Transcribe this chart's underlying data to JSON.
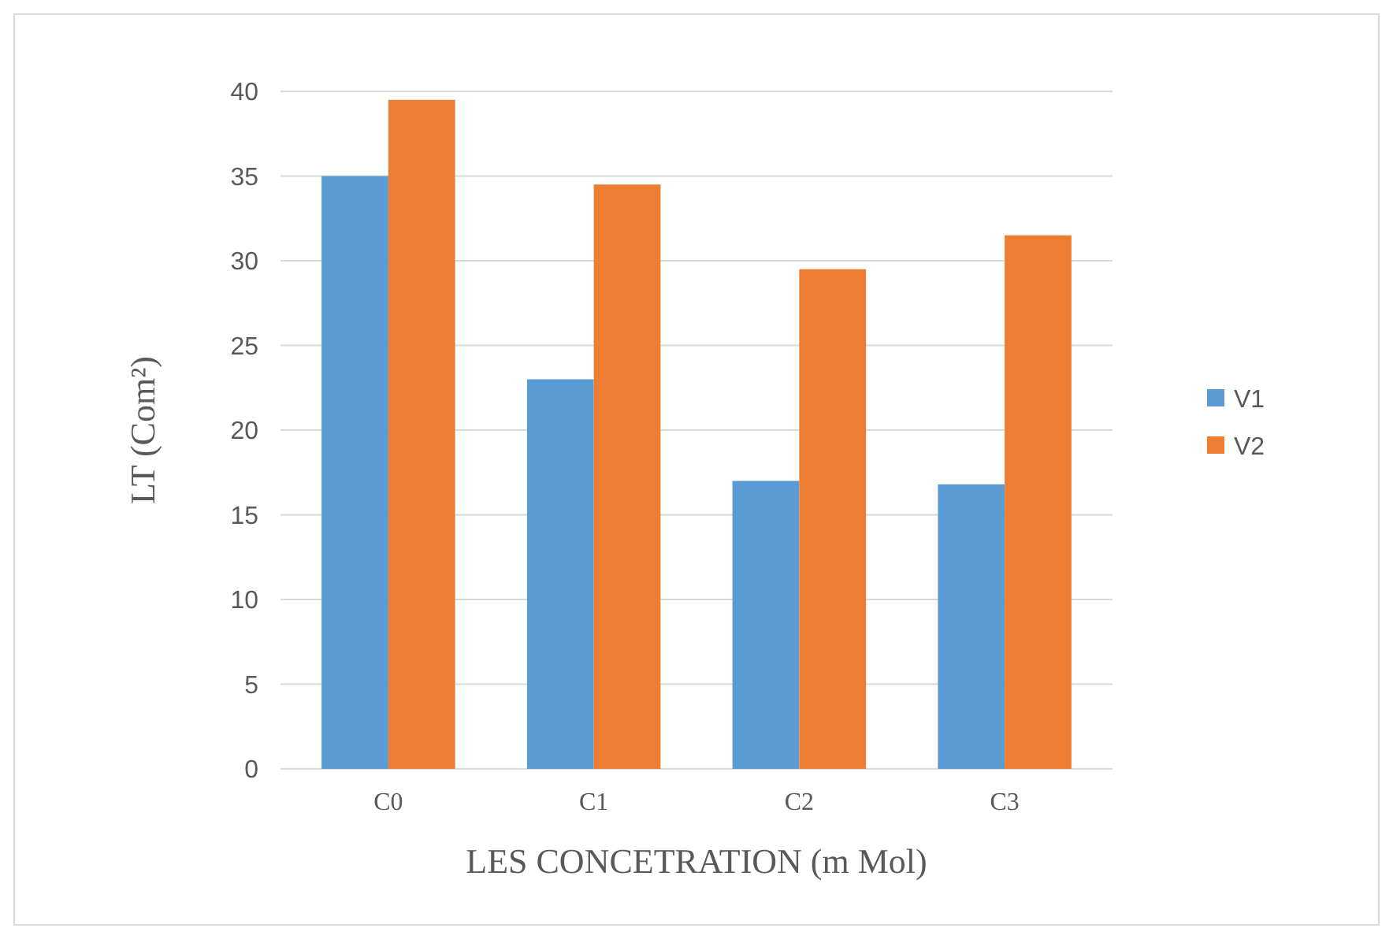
{
  "chart_data": {
    "type": "bar",
    "xlabel": "LES CONCETRATION (m Mol)",
    "ylabel": "LT (Com²)",
    "categories": [
      "C0",
      "C1",
      "C2",
      "C3"
    ],
    "series": [
      {
        "name": "V1",
        "color": "#5b9bd5",
        "values": [
          35,
          23,
          17,
          16.8
        ]
      },
      {
        "name": "V2",
        "color": "#ed7d31",
        "values": [
          39.5,
          34.5,
          29.5,
          31.5
        ]
      }
    ],
    "ylim": [
      0,
      40
    ],
    "yticks": [
      0,
      5,
      10,
      15,
      20,
      25,
      30,
      35,
      40
    ],
    "grid": "y",
    "legend": "right"
  }
}
